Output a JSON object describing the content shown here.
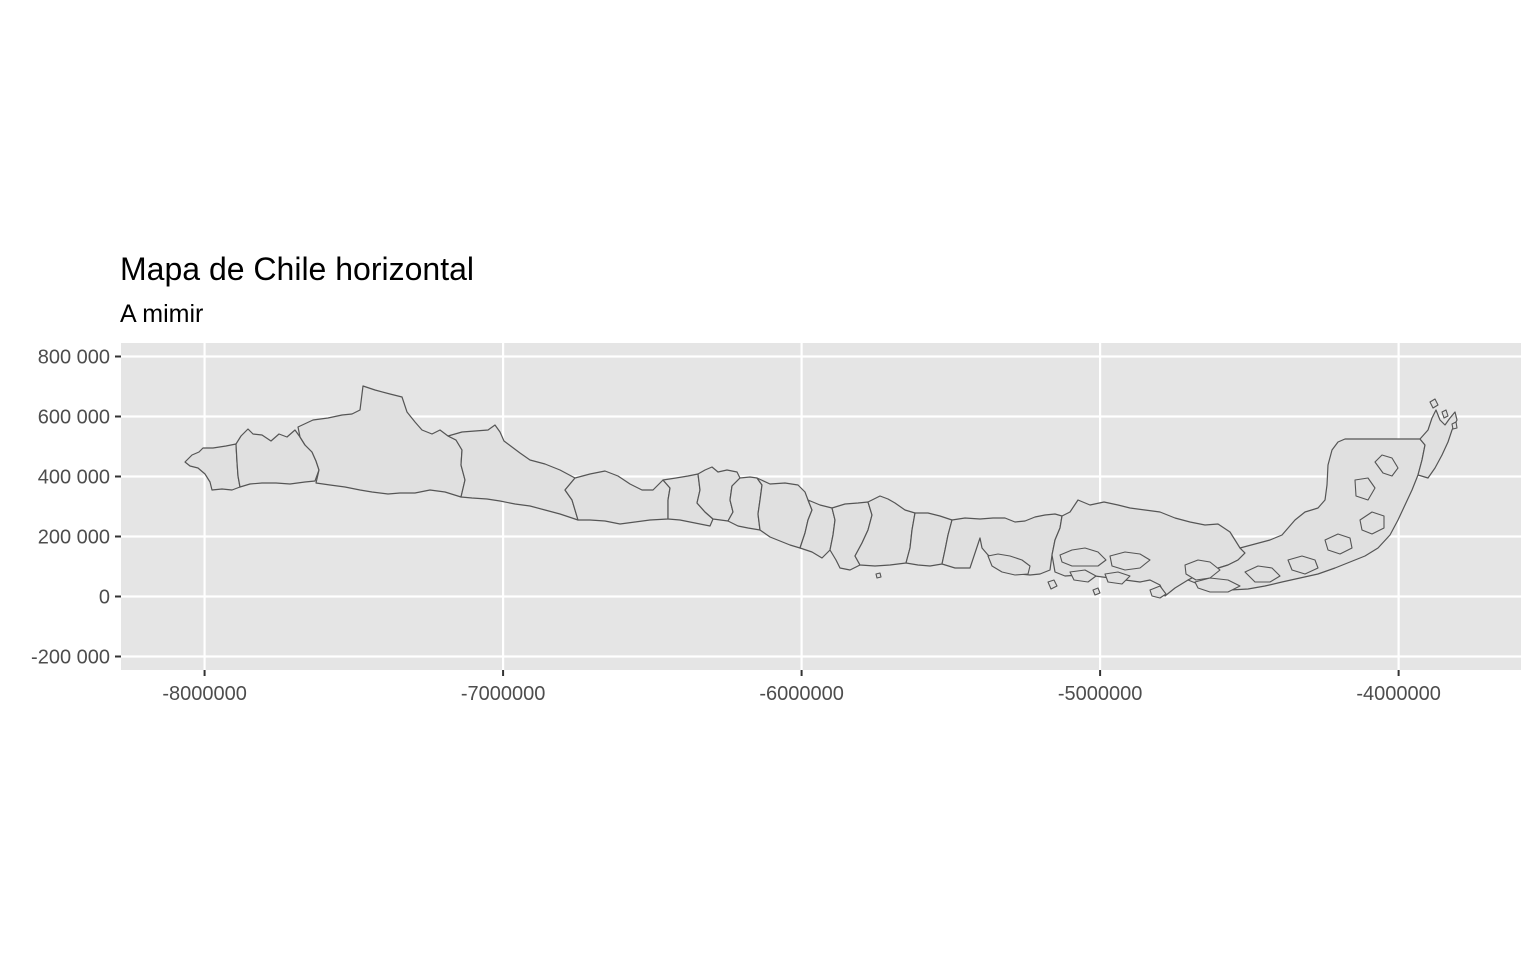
{
  "chart_data": {
    "type": "map",
    "title": "Mapa de Chile horizontal",
    "subtitle": "A mimir",
    "xlabel": "",
    "ylabel": "",
    "x_ticks": [
      -8000000,
      -7000000,
      -6000000,
      -5000000,
      -4000000
    ],
    "x_tick_labels": [
      "-8000000",
      "-7000000",
      "-6000000",
      "-5000000",
      "-4000000"
    ],
    "y_ticks": [
      -200000,
      0,
      200000,
      400000,
      600000,
      800000
    ],
    "y_tick_labels": [
      "-200 000",
      "0",
      "200 000",
      "400 000",
      "600 000",
      "800 000"
    ],
    "xlim": [
      -8280000,
      -3590000
    ],
    "ylim": [
      -245000,
      845000
    ],
    "grid": true,
    "panel_background": "#e5e5e5",
    "region_fill": "#e0e0e0",
    "region_border": "#555555",
    "region_count": 16
  }
}
